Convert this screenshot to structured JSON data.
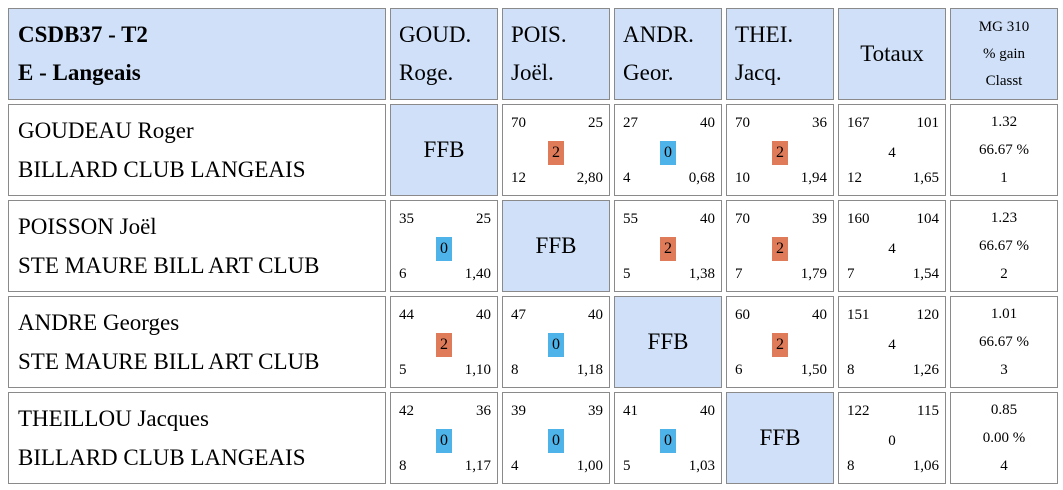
{
  "header": {
    "title_line1": "CSDB37 - T2",
    "title_line2": "E - Langeais",
    "columns": [
      {
        "line1": "GOUD.",
        "line2": "Roge."
      },
      {
        "line1": "POIS.",
        "line2": "Joël."
      },
      {
        "line1": "ANDR.",
        "line2": "Geor."
      },
      {
        "line1": "THEI.",
        "line2": "Jacq."
      }
    ],
    "totals_label": "Totaux",
    "mg_line1": "MG 310",
    "mg_line2": "% gain",
    "mg_line3": "Classt"
  },
  "colors": {
    "header_bg": "#cfe0f8",
    "win_badge": "#e07b5a",
    "loss_badge": "#4db3e8"
  },
  "rows": [
    {
      "name": "GOUDEAU Roger",
      "club": "BILLARD CLUB LANGEAIS",
      "cells": [
        {
          "ffb": "FFB"
        },
        {
          "tl": "70",
          "tr": "25",
          "mid": "2",
          "bl": "12",
          "br": "2,80",
          "win": true
        },
        {
          "tl": "27",
          "tr": "40",
          "mid": "0",
          "bl": "4",
          "br": "0,68",
          "win": false
        },
        {
          "tl": "70",
          "tr": "36",
          "mid": "2",
          "bl": "10",
          "br": "1,94",
          "win": true
        }
      ],
      "totals": {
        "tl": "167",
        "tr": "101",
        "mid": "4",
        "bl": "12",
        "br": "1,65"
      },
      "stats": {
        "mg": "1.32",
        "pct": "66.67 %",
        "rank": "1"
      }
    },
    {
      "name": "POISSON Joël",
      "club": "STE MAURE BILL ART CLUB",
      "cells": [
        {
          "tl": "35",
          "tr": "25",
          "mid": "0",
          "bl": "6",
          "br": "1,40",
          "win": false
        },
        {
          "ffb": "FFB"
        },
        {
          "tl": "55",
          "tr": "40",
          "mid": "2",
          "bl": "5",
          "br": "1,38",
          "win": true
        },
        {
          "tl": "70",
          "tr": "39",
          "mid": "2",
          "bl": "7",
          "br": "1,79",
          "win": true
        }
      ],
      "totals": {
        "tl": "160",
        "tr": "104",
        "mid": "4",
        "bl": "7",
        "br": "1,54"
      },
      "stats": {
        "mg": "1.23",
        "pct": "66.67 %",
        "rank": "2"
      }
    },
    {
      "name": "ANDRE Georges",
      "club": "STE MAURE BILL ART CLUB",
      "cells": [
        {
          "tl": "44",
          "tr": "40",
          "mid": "2",
          "bl": "5",
          "br": "1,10",
          "win": true
        },
        {
          "tl": "47",
          "tr": "40",
          "mid": "0",
          "bl": "8",
          "br": "1,18",
          "win": false
        },
        {
          "ffb": "FFB"
        },
        {
          "tl": "60",
          "tr": "40",
          "mid": "2",
          "bl": "6",
          "br": "1,50",
          "win": true
        }
      ],
      "totals": {
        "tl": "151",
        "tr": "120",
        "mid": "4",
        "bl": "8",
        "br": "1,26"
      },
      "stats": {
        "mg": "1.01",
        "pct": "66.67 %",
        "rank": "3"
      }
    },
    {
      "name": "THEILLOU Jacques",
      "club": "BILLARD CLUB LANGEAIS",
      "cells": [
        {
          "tl": "42",
          "tr": "36",
          "mid": "0",
          "bl": "8",
          "br": "1,17",
          "win": false
        },
        {
          "tl": "39",
          "tr": "39",
          "mid": "0",
          "bl": "4",
          "br": "1,00",
          "win": false
        },
        {
          "tl": "41",
          "tr": "40",
          "mid": "0",
          "bl": "5",
          "br": "1,03",
          "win": false
        },
        {
          "ffb": "FFB"
        }
      ],
      "totals": {
        "tl": "122",
        "tr": "115",
        "mid": "0",
        "bl": "8",
        "br": "1,06"
      },
      "stats": {
        "mg": "0.85",
        "pct": "0.00 %",
        "rank": "4"
      }
    }
  ]
}
